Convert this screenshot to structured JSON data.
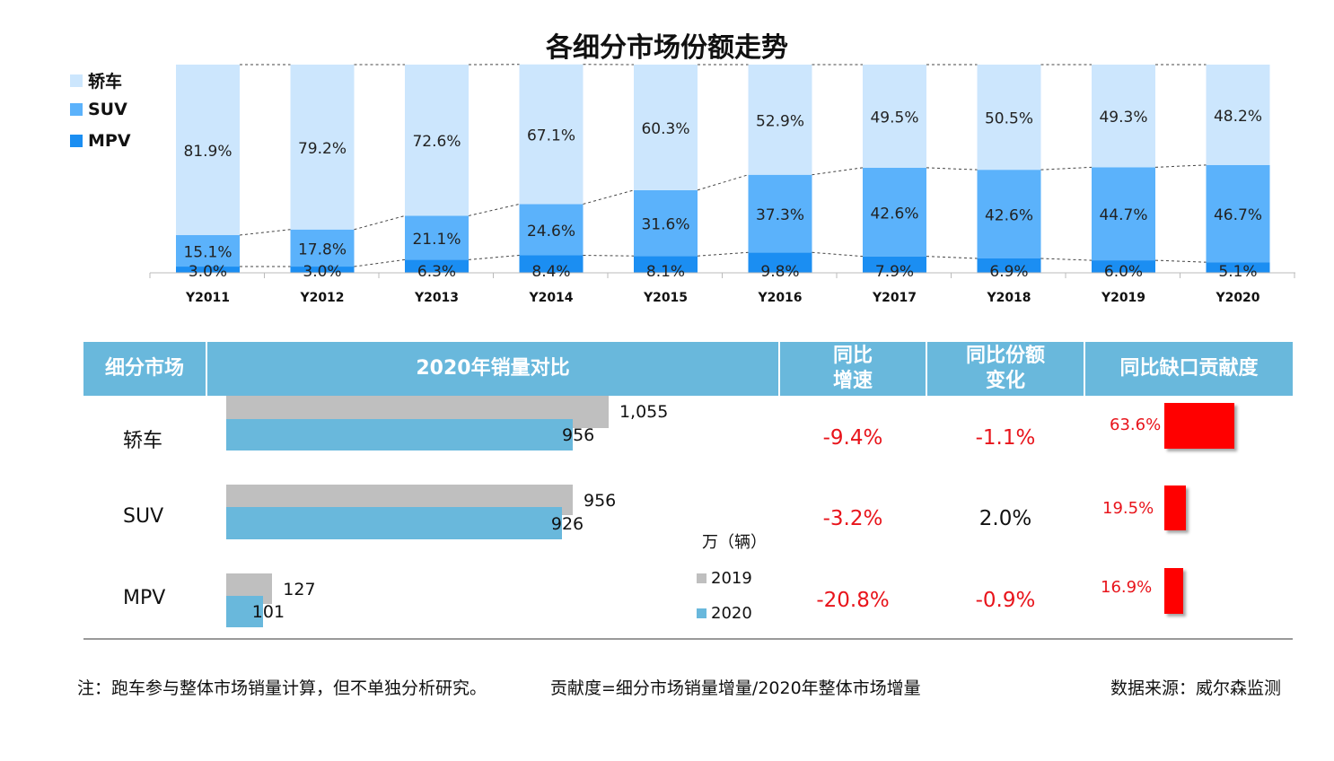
{
  "title": "各细分市场份额走势",
  "colors": {
    "sedan": "#cce6fd",
    "suv": "#5bb2fb",
    "mpv": "#1b8ef2",
    "header": "#69b8dc",
    "bar2019": "#bfbfbf",
    "bar2020": "#69b8dc",
    "red": "#e8141b"
  },
  "legend": [
    {
      "label": "轿车",
      "color": "#cce6fd"
    },
    {
      "label": "SUV",
      "color": "#5bb2fb"
    },
    {
      "label": "MPV",
      "color": "#1b8ef2"
    }
  ],
  "chart_data": {
    "type": "bar",
    "stacked": true,
    "title": "各细分市场份额走势",
    "categories": [
      "Y2011",
      "Y2012",
      "Y2013",
      "Y2014",
      "Y2015",
      "Y2016",
      "Y2017",
      "Y2018",
      "Y2019",
      "Y2020"
    ],
    "series": [
      {
        "name": "MPV",
        "values": [
          3.0,
          3.0,
          6.3,
          8.4,
          8.1,
          9.8,
          7.9,
          6.9,
          6.0,
          5.1
        ],
        "labels": [
          "3.0%",
          "3.0%",
          "6.3%",
          "8.4%",
          "8.1%",
          "9.8%",
          "7.9%",
          "6.9%",
          "6.0%",
          "5.1%"
        ]
      },
      {
        "name": "SUV",
        "values": [
          15.1,
          17.8,
          21.1,
          24.6,
          31.6,
          37.3,
          42.6,
          42.6,
          44.7,
          46.7
        ],
        "labels": [
          "15.1%",
          "17.8%",
          "21.1%",
          "24.6%",
          "31.6%",
          "37.3%",
          "42.6%",
          "42.6%",
          "44.7%",
          "46.7%"
        ]
      },
      {
        "name": "轿车",
        "values": [
          81.9,
          79.2,
          72.6,
          67.1,
          60.3,
          52.9,
          49.5,
          50.5,
          49.3,
          48.2
        ],
        "labels": [
          "81.9%",
          "79.2%",
          "72.6%",
          "67.1%",
          "60.3%",
          "52.9%",
          "49.5%",
          "50.5%",
          "49.3%",
          "48.2%"
        ]
      }
    ],
    "ylim": [
      0,
      100
    ],
    "xlabel": "",
    "ylabel": ""
  },
  "table": {
    "headers": [
      "细分市场",
      "2020年销量对比",
      "同比\n增速",
      "同比份额\n变化",
      "同比缺口贡献度"
    ],
    "unit": "万（辆）",
    "legend": [
      "2019",
      "2020"
    ],
    "rows": [
      {
        "name": "轿车",
        "v2019": 1055,
        "v2019_label": "1,055",
        "v2020": 956,
        "v2020_label": "956",
        "growth": "-9.4%",
        "share_change": "-1.1%",
        "contribution": "63.6%",
        "contribution_value": 63.6
      },
      {
        "name": "SUV",
        "v2019": 956,
        "v2019_label": "956",
        "v2020": 926,
        "v2020_label": "926",
        "growth": "-3.2%",
        "share_change": "2.0%",
        "contribution": "19.5%",
        "contribution_value": 19.5
      },
      {
        "name": "MPV",
        "v2019": 127,
        "v2019_label": "127",
        "v2020": 101,
        "v2020_label": "101",
        "growth": "-20.8%",
        "share_change": "-0.9%",
        "contribution": "16.9%",
        "contribution_value": 16.9
      }
    ]
  },
  "footnotes": {
    "note": "注：跑车参与整体市场销量计算，但不单独分析研究。",
    "formula": "贡献度=细分市场销量增量/2020年整体市场增量",
    "source": "数据来源：威尔森监测"
  }
}
